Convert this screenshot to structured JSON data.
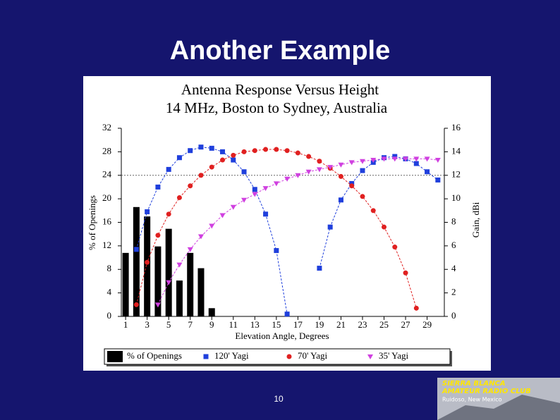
{
  "slide": {
    "title": "Another Example",
    "page_number": "10",
    "logo": {
      "line1": "SIERRA BLANCA",
      "line2": "AMATEUR RADIO CLUB",
      "line3": "Ruidoso, New Mexico"
    }
  },
  "chart_data": {
    "type": "combo",
    "title": "Antenna Response Versus Height",
    "subtitle": "14 MHz, Boston to Sydney, Australia",
    "x_label": "Elevation Angle, Degrees",
    "y_label": "% of Openings",
    "y2_label": "Gain, dBi",
    "x": [
      1,
      2,
      3,
      4,
      5,
      6,
      7,
      8,
      9,
      10,
      11,
      12,
      13,
      14,
      15,
      16,
      17,
      18,
      19,
      20,
      21,
      22,
      23,
      24,
      25,
      26,
      27,
      28,
      29,
      30
    ],
    "xlim": [
      0.6,
      30.6
    ],
    "xticks": [
      1,
      3,
      5,
      7,
      9,
      11,
      13,
      15,
      17,
      19,
      21,
      23,
      25,
      27,
      29
    ],
    "ylim": [
      0,
      32
    ],
    "yticks": [
      0,
      4,
      8,
      12,
      16,
      20,
      24,
      28,
      32
    ],
    "y2lim": [
      0,
      16
    ],
    "y2ticks": [
      0,
      2,
      4,
      6,
      8,
      10,
      12,
      14,
      16
    ],
    "reference_line": 24,
    "legend": "bottom",
    "series": [
      {
        "name": "% of Openings",
        "type": "bar",
        "color": "#000000",
        "values": [
          10.8,
          18.6,
          17,
          11.9,
          14.9,
          6.1,
          10.8,
          8.2,
          1.4,
          null,
          null,
          null,
          null,
          null,
          null,
          null,
          null,
          null,
          null,
          null,
          null,
          null,
          null,
          null,
          null,
          null,
          null,
          null,
          null,
          null
        ]
      },
      {
        "name": "120' Yagi",
        "type": "line",
        "marker": "square",
        "color": "#1f3fdc",
        "axis": "y2",
        "values": [
          null,
          5.7,
          8.9,
          11.0,
          12.5,
          13.5,
          14.1,
          14.4,
          14.3,
          14.0,
          13.3,
          12.3,
          10.8,
          8.7,
          5.6,
          0.2,
          null,
          null,
          4.1,
          7.6,
          9.9,
          11.3,
          12.4,
          13.1,
          13.5,
          13.6,
          13.4,
          13.0,
          12.3,
          11.6
        ]
      },
      {
        "name": "70' Yagi",
        "type": "line",
        "marker": "circle",
        "color": "#e02020",
        "axis": "y2",
        "values": [
          null,
          1.0,
          4.6,
          6.9,
          8.7,
          10.1,
          11.1,
          12.0,
          12.7,
          13.3,
          13.7,
          14.0,
          14.1,
          14.2,
          14.2,
          14.1,
          13.9,
          13.6,
          13.2,
          12.6,
          11.9,
          11.1,
          10.2,
          9.0,
          7.6,
          5.9,
          3.7,
          0.7,
          null,
          null
        ]
      },
      {
        "name": "35' Yagi",
        "type": "line",
        "marker": "triangle",
        "color": "#d040e0",
        "axis": "y2",
        "values": [
          null,
          null,
          null,
          1.0,
          2.9,
          4.4,
          5.7,
          6.8,
          7.7,
          8.6,
          9.3,
          9.9,
          10.4,
          10.9,
          11.3,
          11.7,
          12.0,
          12.3,
          12.5,
          12.7,
          12.9,
          13.1,
          13.2,
          13.3,
          13.4,
          13.4,
          13.4,
          13.4,
          13.4,
          13.3
        ]
      }
    ]
  }
}
